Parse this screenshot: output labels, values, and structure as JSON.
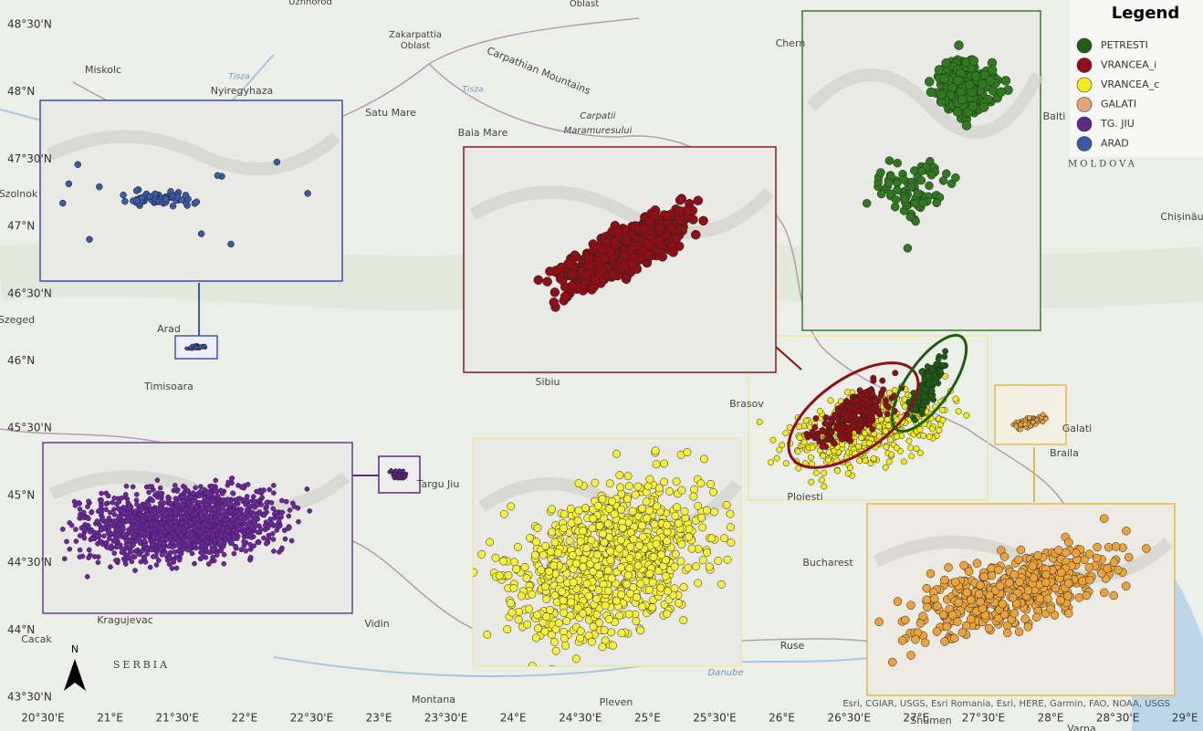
{
  "legend": {
    "title": "Legend",
    "items": [
      {
        "name": "PETRESTI",
        "color": "#1e5e12"
      },
      {
        "name": "VRANCEA_i",
        "color": "#8e1016"
      },
      {
        "name": "VRANCEA_c",
        "color": "#f2ec1c"
      },
      {
        "name": "GALATI",
        "color": "#e8a27a"
      },
      {
        "name": "TG. JIU",
        "color": "#5a2a84"
      },
      {
        "name": "ARAD",
        "color": "#3a5aa8"
      }
    ]
  },
  "lat_labels": [
    "48°30'N",
    "48°N",
    "47°30'N",
    "47°N",
    "46°30'N",
    "46°N",
    "45°30'N",
    "45°N",
    "44°30'N",
    "44°N",
    "43°30'N"
  ],
  "lon_labels": [
    "20°30'E",
    "21°E",
    "21°30'E",
    "22°E",
    "22°30'E",
    "23°E",
    "23°30'E",
    "24°E",
    "24°30'E",
    "25°E",
    "25°30'E",
    "26°E",
    "26°30'E",
    "27°E",
    "27°30'E",
    "28°E",
    "28°30'E",
    "29°E"
  ],
  "places": [
    "Uzhhorod",
    "Oblast",
    "Zakarpattia",
    "Oblast",
    "Carpathian Mountains",
    "Carpatii",
    "Maramuresului",
    "Tisza",
    "Tisza",
    "Miskolc",
    "Nyiregyhaza",
    "Satu Mare",
    "Baia Mare",
    "Szolnok",
    "Szeged",
    "Arad",
    "Timisoara",
    "Sibiu",
    "Brasov",
    "Balti",
    "MOLDOVA",
    "Chișinău",
    "Galati",
    "Braila",
    "Ploiesti",
    "Bucharest",
    "Targu Jiu",
    "Kragujevac",
    "Cacak",
    "SERBIA",
    "Vidin",
    "Ruse",
    "Montana",
    "Pleven",
    "Shumen",
    "Varna",
    "Danube",
    "Chern"
  ],
  "north": "N",
  "attribution": "Esri, CGIAR, USGS, Esri Romania, Esri, HERE, Garmin, FAO, NOAA, USGS"
}
